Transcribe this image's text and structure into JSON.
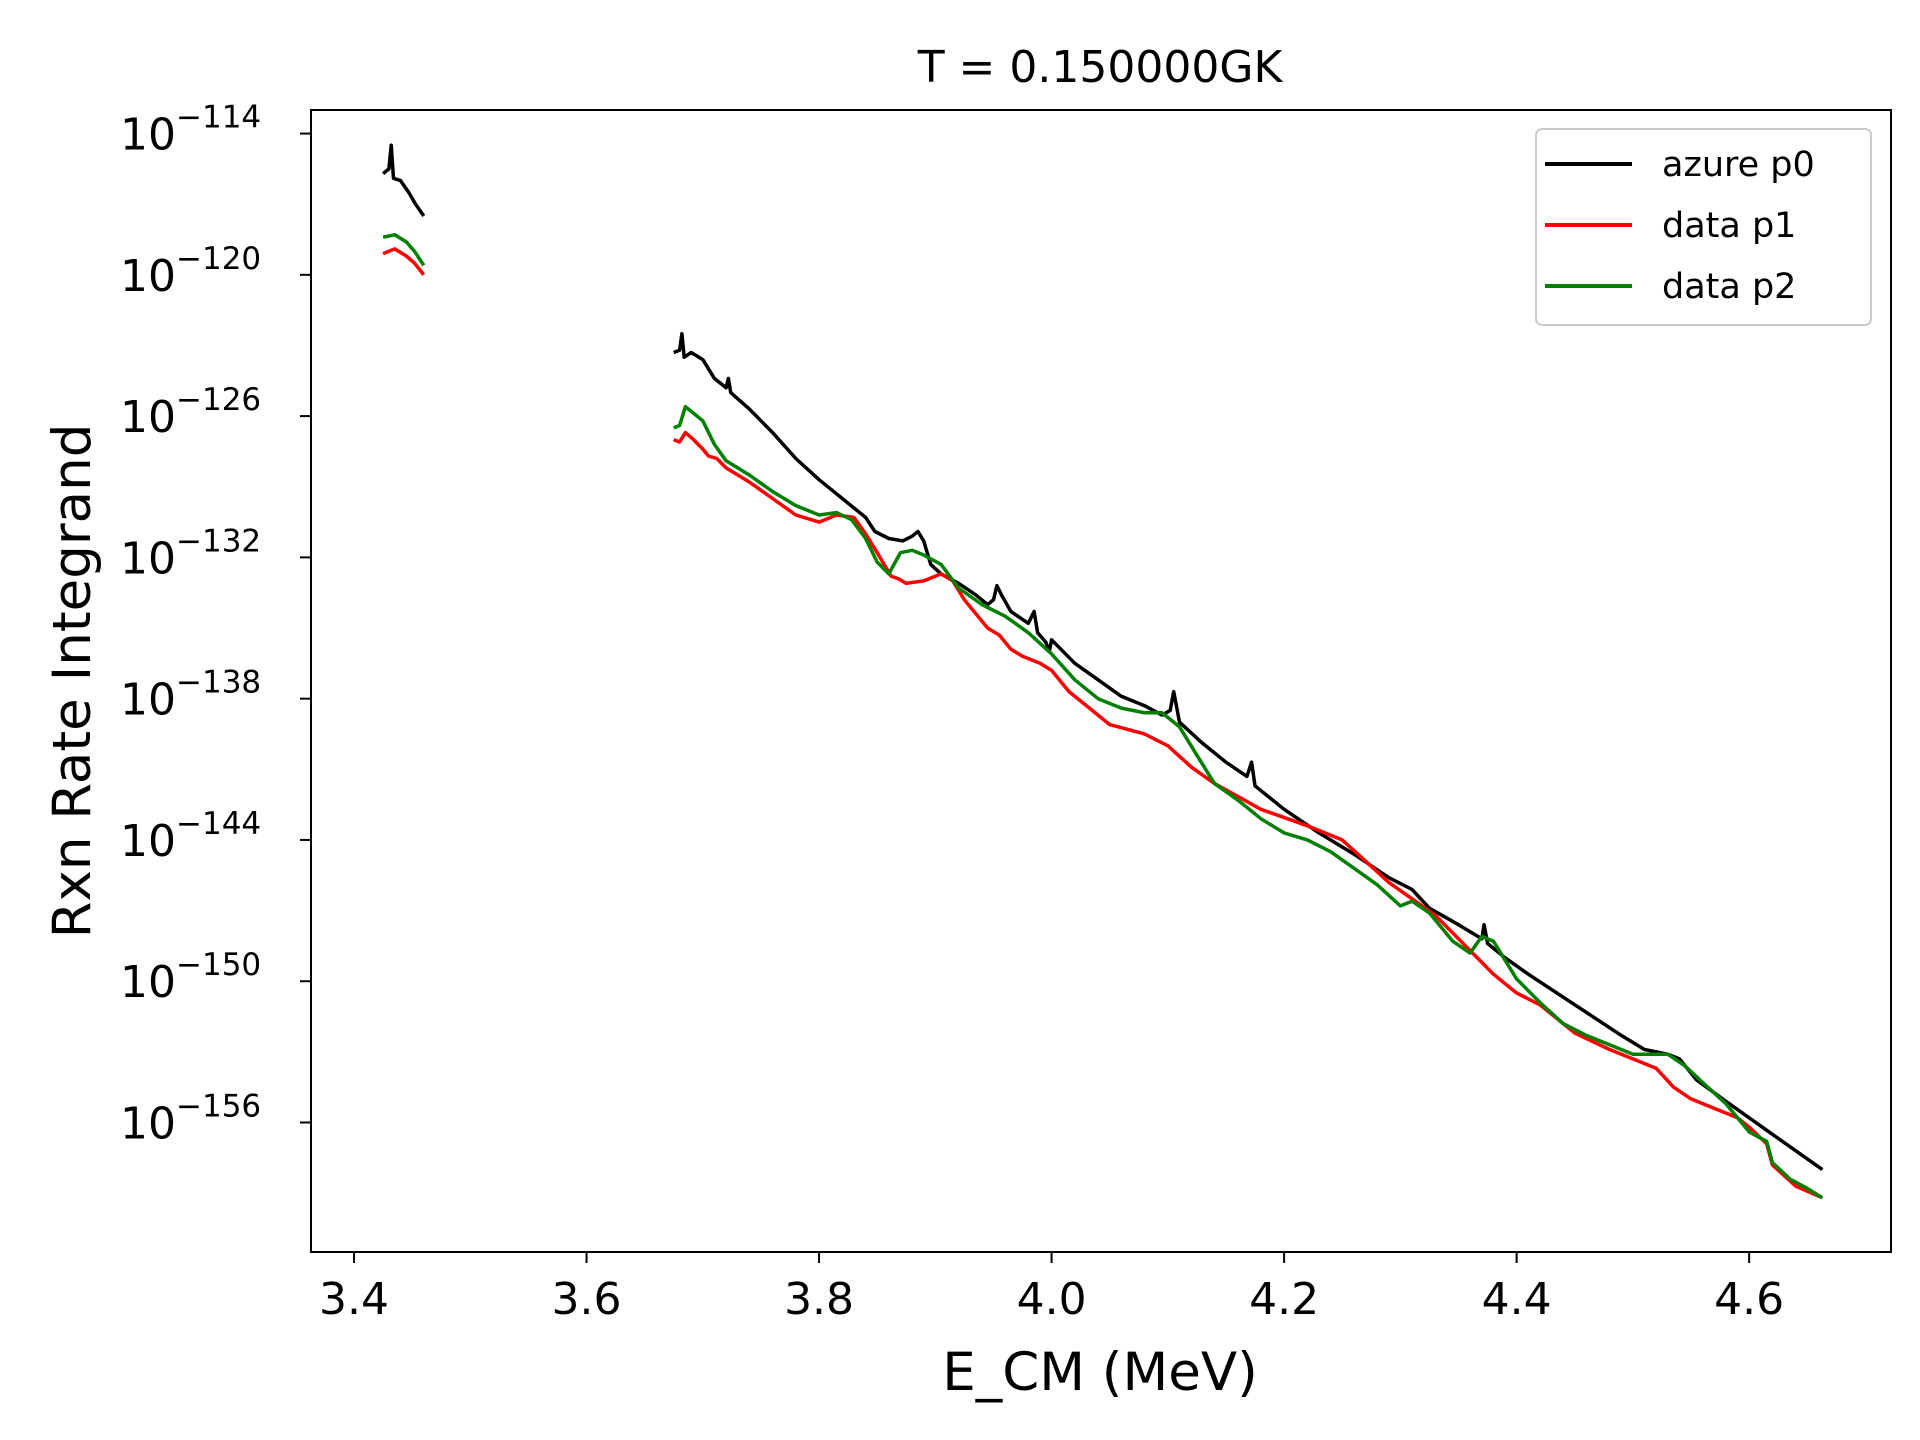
{
  "chart_data": {
    "type": "line",
    "title": "T = 0.150000GK",
    "xlabel": "E_CM (MeV)",
    "ylabel": "Rxn Rate Integrand",
    "y_scale": "log",
    "xlim": [
      3.363,
      4.722
    ],
    "ylim_log10": [
      -161.5,
      -113.0
    ],
    "grid": false,
    "legend_position": "upper right",
    "x_ticks": [
      {
        "value": 3.4,
        "label": "3.4"
      },
      {
        "value": 3.6,
        "label": "3.6"
      },
      {
        "value": 3.8,
        "label": "3.8"
      },
      {
        "value": 4.0,
        "label": "4.0"
      },
      {
        "value": 4.2,
        "label": "4.2"
      },
      {
        "value": 4.4,
        "label": "4.4"
      },
      {
        "value": 4.6,
        "label": "4.6"
      }
    ],
    "y_ticks": [
      {
        "exp": -114,
        "base": "10",
        "sup": "−114"
      },
      {
        "exp": -120,
        "base": "10",
        "sup": "−120"
      },
      {
        "exp": -126,
        "base": "10",
        "sup": "−126"
      },
      {
        "exp": -132,
        "base": "10",
        "sup": "−132"
      },
      {
        "exp": -138,
        "base": "10",
        "sup": "−138"
      },
      {
        "exp": -144,
        "base": "10",
        "sup": "−144"
      },
      {
        "exp": -150,
        "base": "10",
        "sup": "−150"
      },
      {
        "exp": -156,
        "base": "10",
        "sup": "−156"
      }
    ],
    "series": [
      {
        "name": "azure p0",
        "color": "#000000",
        "segments": [
          [
            [
              3.425,
              -115.7
            ],
            [
              3.43,
              -115.5
            ],
            [
              3.432,
              -114.5
            ],
            [
              3.434,
              -115.9
            ],
            [
              3.44,
              -116.0
            ],
            [
              3.447,
              -116.5
            ],
            [
              3.453,
              -117.0
            ],
            [
              3.46,
              -117.5
            ]
          ],
          [
            [
              3.675,
              -123.3
            ],
            [
              3.68,
              -123.2
            ],
            [
              3.682,
              -122.5
            ],
            [
              3.684,
              -123.5
            ],
            [
              3.69,
              -123.3
            ],
            [
              3.7,
              -123.6
            ],
            [
              3.71,
              -124.4
            ],
            [
              3.72,
              -124.8
            ],
            [
              3.722,
              -124.4
            ],
            [
              3.724,
              -125.0
            ],
            [
              3.74,
              -125.7
            ],
            [
              3.76,
              -126.7
            ],
            [
              3.78,
              -127.8
            ],
            [
              3.8,
              -128.7
            ],
            [
              3.82,
              -129.5
            ],
            [
              3.84,
              -130.3
            ],
            [
              3.848,
              -130.9
            ],
            [
              3.86,
              -131.2
            ],
            [
              3.872,
              -131.3
            ],
            [
              3.88,
              -131.1
            ],
            [
              3.885,
              -130.9
            ],
            [
              3.89,
              -131.3
            ],
            [
              3.896,
              -132.3
            ],
            [
              3.905,
              -132.7
            ],
            [
              3.92,
              -133.1
            ],
            [
              3.935,
              -133.6
            ],
            [
              3.945,
              -134.0
            ],
            [
              3.95,
              -133.8
            ],
            [
              3.953,
              -133.2
            ],
            [
              3.957,
              -133.6
            ],
            [
              3.965,
              -134.3
            ],
            [
              3.98,
              -134.8
            ],
            [
              3.985,
              -134.3
            ],
            [
              3.988,
              -135.2
            ],
            [
              3.995,
              -135.6
            ],
            [
              3.998,
              -136.0
            ],
            [
              4.0,
              -135.5
            ],
            [
              4.02,
              -136.5
            ],
            [
              4.04,
              -137.2
            ],
            [
              4.06,
              -137.9
            ],
            [
              4.08,
              -138.3
            ],
            [
              4.095,
              -138.7
            ],
            [
              4.102,
              -138.5
            ],
            [
              4.105,
              -137.7
            ],
            [
              4.11,
              -139.0
            ],
            [
              4.13,
              -139.9
            ],
            [
              4.15,
              -140.7
            ],
            [
              4.168,
              -141.3
            ],
            [
              4.172,
              -140.7
            ],
            [
              4.175,
              -141.7
            ],
            [
              4.2,
              -142.7
            ],
            [
              4.23,
              -143.7
            ],
            [
              4.26,
              -144.6
            ],
            [
              4.29,
              -145.6
            ],
            [
              4.31,
              -146.1
            ],
            [
              4.325,
              -146.9
            ],
            [
              4.35,
              -147.6
            ],
            [
              4.37,
              -148.2
            ],
            [
              4.372,
              -147.6
            ],
            [
              4.375,
              -148.4
            ],
            [
              4.39,
              -149.0
            ],
            [
              4.41,
              -149.7
            ],
            [
              4.45,
              -151.0
            ],
            [
              4.49,
              -152.3
            ],
            [
              4.51,
              -152.9
            ],
            [
              4.53,
              -153.1
            ],
            [
              4.54,
              -153.3
            ],
            [
              4.555,
              -154.2
            ],
            [
              4.58,
              -155.1
            ],
            [
              4.62,
              -156.5
            ],
            [
              4.663,
              -158.0
            ]
          ]
        ]
      },
      {
        "name": "data p1",
        "color": "#ff0000",
        "segments": [
          [
            [
              3.425,
              -119.1
            ],
            [
              3.435,
              -118.9
            ],
            [
              3.445,
              -119.2
            ],
            [
              3.452,
              -119.5
            ],
            [
              3.46,
              -120.0
            ]
          ],
          [
            [
              3.675,
              -127.0
            ],
            [
              3.68,
              -127.1
            ],
            [
              3.685,
              -126.7
            ],
            [
              3.692,
              -127.0
            ],
            [
              3.7,
              -127.4
            ],
            [
              3.705,
              -127.7
            ],
            [
              3.712,
              -127.8
            ],
            [
              3.72,
              -128.2
            ],
            [
              3.74,
              -128.8
            ],
            [
              3.76,
              -129.5
            ],
            [
              3.78,
              -130.2
            ],
            [
              3.8,
              -130.5
            ],
            [
              3.815,
              -130.2
            ],
            [
              3.83,
              -130.3
            ],
            [
              3.84,
              -131.0
            ],
            [
              3.85,
              -131.8
            ],
            [
              3.862,
              -132.8
            ],
            [
              3.868,
              -132.9
            ],
            [
              3.875,
              -133.1
            ],
            [
              3.89,
              -133.0
            ],
            [
              3.905,
              -132.7
            ],
            [
              3.915,
              -133.0
            ],
            [
              3.925,
              -133.8
            ],
            [
              3.945,
              -135.0
            ],
            [
              3.955,
              -135.3
            ],
            [
              3.965,
              -135.9
            ],
            [
              3.975,
              -136.2
            ],
            [
              3.99,
              -136.5
            ],
            [
              4.0,
              -136.8
            ],
            [
              4.015,
              -137.7
            ],
            [
              4.03,
              -138.3
            ],
            [
              4.05,
              -139.1
            ],
            [
              4.08,
              -139.5
            ],
            [
              4.1,
              -140.0
            ],
            [
              4.12,
              -140.9
            ],
            [
              4.14,
              -141.6
            ],
            [
              4.18,
              -142.7
            ],
            [
              4.22,
              -143.4
            ],
            [
              4.25,
              -144.0
            ],
            [
              4.27,
              -144.9
            ],
            [
              4.29,
              -145.8
            ],
            [
              4.31,
              -146.5
            ],
            [
              4.33,
              -147.2
            ],
            [
              4.35,
              -148.2
            ],
            [
              4.37,
              -149.2
            ],
            [
              4.38,
              -149.7
            ],
            [
              4.4,
              -150.5
            ],
            [
              4.42,
              -151.0
            ],
            [
              4.45,
              -152.2
            ],
            [
              4.48,
              -152.9
            ],
            [
              4.5,
              -153.3
            ],
            [
              4.52,
              -153.7
            ],
            [
              4.535,
              -154.5
            ],
            [
              4.55,
              -155.0
            ],
            [
              4.57,
              -155.4
            ],
            [
              4.59,
              -155.8
            ],
            [
              4.6,
              -156.2
            ],
            [
              4.615,
              -156.9
            ],
            [
              4.62,
              -157.8
            ],
            [
              4.64,
              -158.7
            ],
            [
              4.663,
              -159.2
            ]
          ]
        ]
      },
      {
        "name": "data p2",
        "color": "#008000",
        "segments": [
          [
            [
              3.425,
              -118.4
            ],
            [
              3.435,
              -118.3
            ],
            [
              3.445,
              -118.6
            ],
            [
              3.452,
              -119.0
            ],
            [
              3.46,
              -119.6
            ]
          ],
          [
            [
              3.675,
              -126.5
            ],
            [
              3.68,
              -126.4
            ],
            [
              3.685,
              -125.6
            ],
            [
              3.69,
              -125.8
            ],
            [
              3.7,
              -126.2
            ],
            [
              3.71,
              -127.2
            ],
            [
              3.72,
              -127.9
            ],
            [
              3.74,
              -128.5
            ],
            [
              3.76,
              -129.2
            ],
            [
              3.78,
              -129.8
            ],
            [
              3.8,
              -130.2
            ],
            [
              3.815,
              -130.1
            ],
            [
              3.828,
              -130.4
            ],
            [
              3.84,
              -131.2
            ],
            [
              3.85,
              -132.2
            ],
            [
              3.86,
              -132.7
            ],
            [
              3.87,
              -131.8
            ],
            [
              3.88,
              -131.7
            ],
            [
              3.89,
              -131.9
            ],
            [
              3.905,
              -132.3
            ],
            [
              3.92,
              -133.3
            ],
            [
              3.94,
              -134.0
            ],
            [
              3.96,
              -134.5
            ],
            [
              3.98,
              -135.2
            ],
            [
              4.0,
              -136.1
            ],
            [
              4.02,
              -137.2
            ],
            [
              4.04,
              -138.0
            ],
            [
              4.06,
              -138.4
            ],
            [
              4.08,
              -138.6
            ],
            [
              4.095,
              -138.6
            ],
            [
              4.11,
              -139.2
            ],
            [
              4.125,
              -140.4
            ],
            [
              4.14,
              -141.6
            ],
            [
              4.16,
              -142.3
            ],
            [
              4.18,
              -143.1
            ],
            [
              4.2,
              -143.7
            ],
            [
              4.22,
              -144.0
            ],
            [
              4.24,
              -144.5
            ],
            [
              4.26,
              -145.2
            ],
            [
              4.28,
              -145.9
            ],
            [
              4.3,
              -146.8
            ],
            [
              4.31,
              -146.6
            ],
            [
              4.325,
              -147.1
            ],
            [
              4.345,
              -148.3
            ],
            [
              4.36,
              -148.8
            ],
            [
              4.37,
              -148.1
            ],
            [
              4.38,
              -148.3
            ],
            [
              4.4,
              -149.9
            ],
            [
              4.42,
              -150.9
            ],
            [
              4.44,
              -151.8
            ],
            [
              4.46,
              -152.3
            ],
            [
              4.48,
              -152.7
            ],
            [
              4.5,
              -153.1
            ],
            [
              4.53,
              -153.1
            ],
            [
              4.545,
              -153.6
            ],
            [
              4.56,
              -154.3
            ],
            [
              4.58,
              -155.2
            ],
            [
              4.6,
              -156.4
            ],
            [
              4.615,
              -156.8
            ],
            [
              4.62,
              -157.7
            ],
            [
              4.635,
              -158.4
            ],
            [
              4.65,
              -158.8
            ],
            [
              4.663,
              -159.2
            ]
          ]
        ]
      }
    ]
  }
}
